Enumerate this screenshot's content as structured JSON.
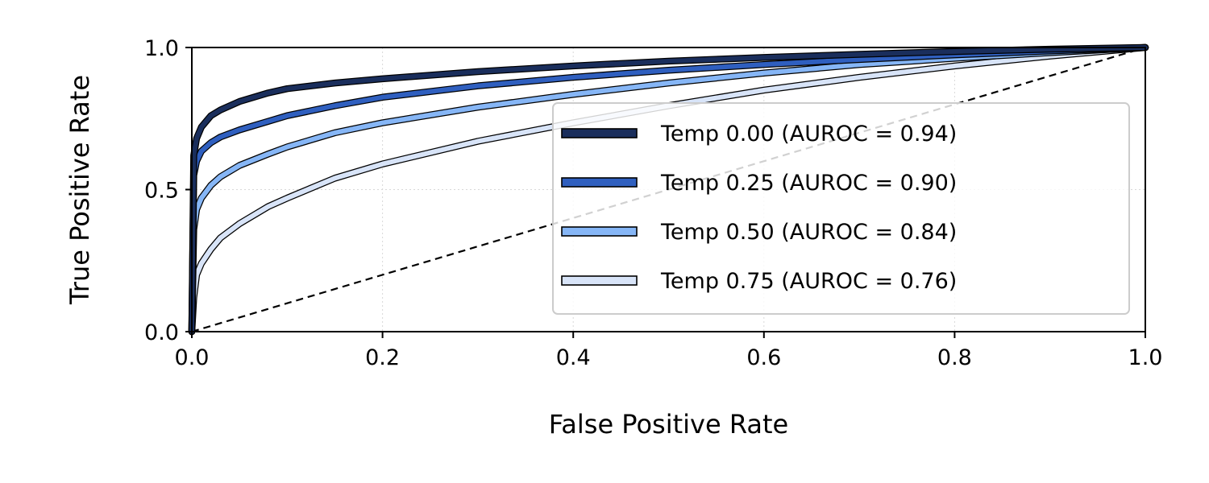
{
  "chart_data": {
    "type": "line",
    "title": "",
    "xlabel": "False Positive Rate",
    "ylabel": "True Positive Rate",
    "xlim": [
      0.0,
      1.0
    ],
    "ylim": [
      0.0,
      1.0
    ],
    "xticks": [
      "0.0",
      "0.2",
      "0.4",
      "0.6",
      "0.8",
      "1.0"
    ],
    "yticks": [
      "0.0",
      "0.5",
      "1.0"
    ],
    "grid": true,
    "legend_position": "lower-right",
    "diagonal": {
      "x": [
        0,
        1
      ],
      "y": [
        0,
        1
      ],
      "style": "dashed"
    },
    "series": [
      {
        "name": "Temp 0.00 (AUROC = 0.94)",
        "color": "#1a2e5c",
        "x": [
          0,
          0.002,
          0.005,
          0.01,
          0.02,
          0.03,
          0.05,
          0.08,
          0.1,
          0.15,
          0.2,
          0.3,
          0.4,
          0.5,
          0.6,
          0.7,
          0.8,
          0.9,
          1.0
        ],
        "y": [
          0,
          0.62,
          0.68,
          0.72,
          0.76,
          0.78,
          0.81,
          0.84,
          0.855,
          0.875,
          0.89,
          0.915,
          0.935,
          0.952,
          0.965,
          0.976,
          0.986,
          0.994,
          1.0
        ]
      },
      {
        "name": "Temp 0.25 (AUROC = 0.90)",
        "color": "#2f5fbf",
        "x": [
          0,
          0.002,
          0.005,
          0.01,
          0.02,
          0.03,
          0.05,
          0.08,
          0.1,
          0.15,
          0.2,
          0.3,
          0.4,
          0.5,
          0.6,
          0.7,
          0.8,
          0.9,
          1.0
        ],
        "y": [
          0,
          0.55,
          0.6,
          0.635,
          0.665,
          0.685,
          0.71,
          0.74,
          0.76,
          0.795,
          0.825,
          0.865,
          0.895,
          0.92,
          0.94,
          0.958,
          0.974,
          0.988,
          1.0
        ]
      },
      {
        "name": "Temp 0.50 (AUROC = 0.84)",
        "color": "#86b6f6",
        "x": [
          0,
          0.002,
          0.005,
          0.01,
          0.02,
          0.03,
          0.05,
          0.08,
          0.1,
          0.15,
          0.2,
          0.3,
          0.4,
          0.5,
          0.6,
          0.7,
          0.8,
          0.9,
          1.0
        ],
        "y": [
          0,
          0.36,
          0.43,
          0.47,
          0.515,
          0.545,
          0.585,
          0.625,
          0.65,
          0.7,
          0.735,
          0.79,
          0.835,
          0.875,
          0.91,
          0.94,
          0.962,
          0.982,
          1.0
        ]
      },
      {
        "name": "Temp 0.75 (AUROC = 0.76)",
        "color": "#d8e4f8",
        "x": [
          0,
          0.002,
          0.005,
          0.01,
          0.02,
          0.03,
          0.05,
          0.08,
          0.1,
          0.15,
          0.2,
          0.3,
          0.4,
          0.5,
          0.6,
          0.7,
          0.8,
          0.9,
          1.0
        ],
        "y": [
          0,
          0.12,
          0.2,
          0.24,
          0.29,
          0.33,
          0.38,
          0.44,
          0.47,
          0.54,
          0.59,
          0.67,
          0.735,
          0.795,
          0.85,
          0.895,
          0.935,
          0.97,
          1.0
        ]
      }
    ]
  }
}
